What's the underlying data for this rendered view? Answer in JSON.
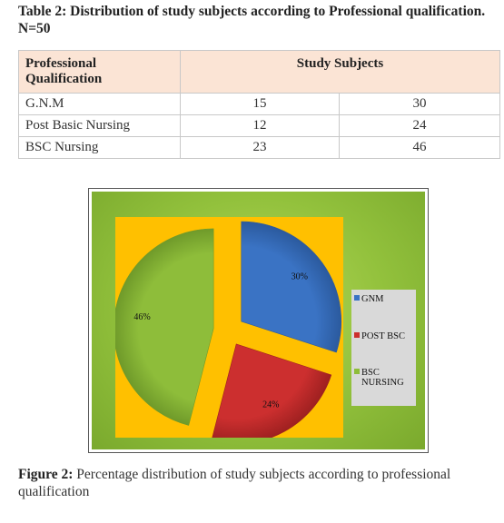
{
  "table_caption": "Table 2: Distribution of study subjects according to Professional qualification. N=50",
  "table": {
    "header_col1": "Professional Qualification",
    "header_col2": "Study Subjects",
    "rows": [
      {
        "label": "G.N.M",
        "count": "15",
        "percent": "30"
      },
      {
        "label": "Post Basic Nursing",
        "count": "12",
        "percent": "24"
      },
      {
        "label": "BSC Nursing",
        "count": "23",
        "percent": "46"
      }
    ]
  },
  "chart_data": {
    "type": "pie",
    "title": "",
    "categories": [
      "GNM",
      "POST BSC",
      "BSC NURSING"
    ],
    "values": [
      30,
      24,
      46
    ],
    "data_labels": [
      "30%",
      "24%",
      "46%"
    ],
    "colors": [
      "#3a73c4",
      "#cc2f2f",
      "#8ebd3a"
    ],
    "exploded": true,
    "legend": "right",
    "background_color": "#ffc000",
    "frame_color": "#9acb3e"
  },
  "figure_caption": {
    "lead": "Figure 2:",
    "text": " Percentage distribution of study subjects according to professional qualification"
  }
}
